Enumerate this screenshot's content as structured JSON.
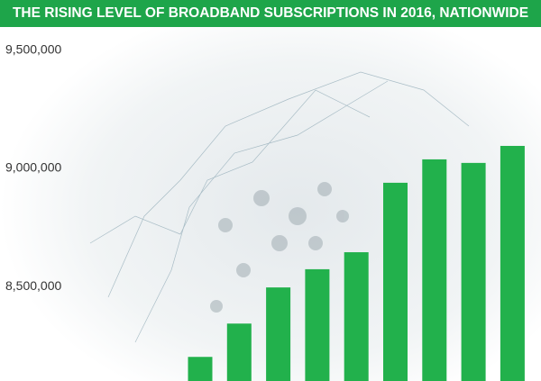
{
  "chart_data": {
    "type": "bar",
    "title": "THE RISING LEVEL OF BROADBAND SUBSCRIPTIONS IN 2016, NATIONWIDE",
    "categories": [
      null,
      null,
      null,
      null,
      null,
      null,
      null,
      null,
      null
    ],
    "values": [
      8202000,
      8343000,
      8496000,
      8573000,
      8645000,
      8939000,
      9038000,
      9023000,
      9095000
    ],
    "color": "#22b14c",
    "ylim": [
      8100000,
      9560000
    ],
    "yticks": [
      {
        "value": 8500000,
        "label": "8,500,000"
      },
      {
        "value": 9000000,
        "label": "9,000,000"
      },
      {
        "value": 9500000,
        "label": "9,500,000"
      }
    ],
    "grid": false
  }
}
